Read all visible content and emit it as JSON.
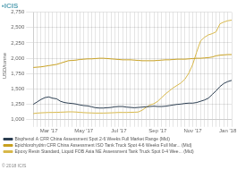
{
  "chart_data": {
    "type": "line",
    "title": "▪ICIS",
    "ylabel": "USD/tonne",
    "annotations": [
      "© 2018 ICIS"
    ],
    "categories": [
      null,
      null,
      null,
      null,
      "Mar '17",
      null,
      null,
      null,
      null,
      null,
      null,
      null,
      null,
      "May '17",
      null,
      null,
      null,
      null,
      null,
      null,
      null,
      null,
      "Jul '17",
      null,
      null,
      null,
      null,
      null,
      null,
      null,
      null,
      null,
      "Sep '17",
      null,
      null,
      null,
      null,
      null,
      null,
      null,
      null,
      "Nov '17",
      null,
      null,
      null,
      null,
      null,
      null,
      null,
      null,
      "Jan '18",
      null
    ],
    "series": [
      {
        "name": "Bisphenol A CFR China Assessment Spot 2-6 Weeks Full Market Range (Mid)",
        "color": "#2d3f52",
        "values": [
          1250,
          1290,
          1330,
          1360,
          1370,
          1350,
          1340,
          1300,
          1280,
          1270,
          1265,
          1255,
          1240,
          1230,
          1225,
          1210,
          1195,
          1190,
          1190,
          1195,
          1200,
          1210,
          1215,
          1215,
          1205,
          1200,
          1195,
          1200,
          1205,
          1210,
          1215,
          1220,
          1215,
          1215,
          1220,
          1230,
          1240,
          1250,
          1255,
          1265,
          1270,
          1270,
          1280,
          1300,
          1320,
          1350,
          1410,
          1470,
          1540,
          1590,
          1620,
          1640
        ]
      },
      {
        "name": "Epichlorohydrin CFR China Assessment ISO Tank Truck Spot 4-6 Weeks Full Mar... (Mid)",
        "color": "#c8a020",
        "values": [
          1850,
          1855,
          1860,
          1870,
          1880,
          1890,
          1900,
          1920,
          1940,
          1960,
          1965,
          1970,
          1980,
          1985,
          1990,
          1990,
          1995,
          2000,
          2000,
          1995,
          1990,
          1985,
          1980,
          1975,
          1975,
          1975,
          1970,
          1965,
          1960,
          1960,
          1960,
          1960,
          1965,
          1970,
          1975,
          1975,
          1980,
          1985,
          1985,
          1985,
          1990,
          1995,
          2000,
          2000,
          2005,
          2010,
          2020,
          2040,
          2050,
          2055,
          2060,
          2060
        ]
      },
      {
        "name": "Epoxy Resin Standard, Liquid FOB Asia NE Assessment Tank Truck Spot 0-4 Wee... (Mid)",
        "color": "#d8b84a",
        "values": [
          1100,
          1108,
          1112,
          1115,
          1118,
          1118,
          1120,
          1122,
          1125,
          1128,
          1128,
          1125,
          1120,
          1115,
          1112,
          1110,
          1108,
          1108,
          1108,
          1110,
          1112,
          1115,
          1118,
          1118,
          1118,
          1120,
          1122,
          1125,
          1155,
          1200,
          1240,
          1260,
          1300,
          1360,
          1420,
          1470,
          1520,
          1560,
          1600,
          1660,
          1760,
          1900,
          2100,
          2280,
          2340,
          2380,
          2400,
          2430,
          2560,
          2590,
          2610,
          2620
        ]
      }
    ],
    "ylim": [
      1000,
      2750
    ],
    "yticks": [
      {
        "value": 1000,
        "label": "1,000"
      },
      {
        "value": 1250,
        "label": "1,250"
      },
      {
        "value": 1500,
        "label": "1,500"
      },
      {
        "value": 1750,
        "label": "1,750"
      },
      {
        "value": 2000,
        "label": "2,000"
      },
      {
        "value": 2250,
        "label": "2,250"
      },
      {
        "value": 2500,
        "label": "2,500"
      },
      {
        "value": 2750,
        "label": "2,750"
      }
    ],
    "grid": true,
    "legend": "bottom"
  }
}
